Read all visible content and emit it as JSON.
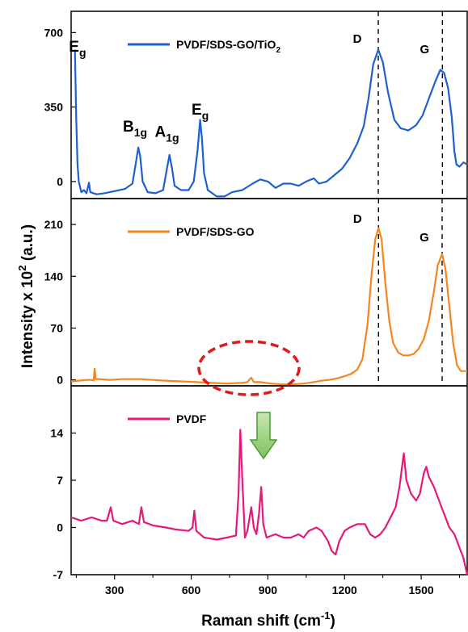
{
  "chart_data": {
    "type": "line",
    "x_axis": {
      "label": "Raman shift (cm",
      "label_sup": "-1",
      "label_end": ")",
      "range": [
        130,
        1680
      ],
      "ticks": [
        300,
        600,
        900,
        1200,
        1500
      ]
    },
    "y_axis": {
      "label": "Intensity x 10",
      "label_sup": "2",
      "label_end": " (a.u.)"
    },
    "panels": [
      {
        "id": "top",
        "legend": {
          "text": "PVDF/SDS-GO/TiO",
          "sub": "2"
        },
        "color": "#1f5fd0",
        "ylim": [
          -80,
          800
        ],
        "yticks": [
          0,
          350,
          700
        ],
        "annotations": [
          {
            "base": "E",
            "sub": "g",
            "x": 155,
            "y": 610
          },
          {
            "base": "B",
            "sub": "1g",
            "x": 380,
            "y": 235
          },
          {
            "base": "A",
            "sub": "1g",
            "x": 505,
            "y": 210
          },
          {
            "base": "E",
            "sub": "g",
            "x": 635,
            "y": 315
          }
        ],
        "D": {
          "label": "D",
          "x": 1332
        },
        "G": {
          "label": "G",
          "x": 1583
        },
        "points": [
          [
            145,
            620
          ],
          [
            150,
            300
          ],
          [
            155,
            80
          ],
          [
            160,
            0
          ],
          [
            170,
            -50
          ],
          [
            180,
            -40
          ],
          [
            190,
            -55
          ],
          [
            200,
            -5
          ],
          [
            205,
            -50
          ],
          [
            230,
            -60
          ],
          [
            260,
            -55
          ],
          [
            300,
            -45
          ],
          [
            340,
            -35
          ],
          [
            370,
            -10
          ],
          [
            385,
            100
          ],
          [
            393,
            160
          ],
          [
            400,
            120
          ],
          [
            410,
            0
          ],
          [
            430,
            -50
          ],
          [
            460,
            -55
          ],
          [
            490,
            -40
          ],
          [
            505,
            60
          ],
          [
            515,
            125
          ],
          [
            525,
            60
          ],
          [
            535,
            -20
          ],
          [
            560,
            -40
          ],
          [
            590,
            -40
          ],
          [
            610,
            0
          ],
          [
            625,
            150
          ],
          [
            635,
            290
          ],
          [
            642,
            200
          ],
          [
            650,
            40
          ],
          [
            665,
            -40
          ],
          [
            700,
            -70
          ],
          [
            730,
            -70
          ],
          [
            760,
            -50
          ],
          [
            800,
            -40
          ],
          [
            840,
            -10
          ],
          [
            870,
            10
          ],
          [
            900,
            0
          ],
          [
            930,
            -30
          ],
          [
            960,
            -10
          ],
          [
            990,
            -10
          ],
          [
            1020,
            -20
          ],
          [
            1050,
            0
          ],
          [
            1080,
            15
          ],
          [
            1100,
            -10
          ],
          [
            1130,
            0
          ],
          [
            1160,
            30
          ],
          [
            1190,
            60
          ],
          [
            1220,
            110
          ],
          [
            1250,
            180
          ],
          [
            1275,
            260
          ],
          [
            1295,
            400
          ],
          [
            1312,
            550
          ],
          [
            1332,
            620
          ],
          [
            1350,
            560
          ],
          [
            1370,
            420
          ],
          [
            1395,
            290
          ],
          [
            1420,
            250
          ],
          [
            1450,
            240
          ],
          [
            1480,
            265
          ],
          [
            1505,
            310
          ],
          [
            1530,
            390
          ],
          [
            1555,
            470
          ],
          [
            1575,
            525
          ],
          [
            1590,
            510
          ],
          [
            1605,
            440
          ],
          [
            1620,
            300
          ],
          [
            1630,
            140
          ],
          [
            1638,
            80
          ],
          [
            1650,
            70
          ],
          [
            1665,
            90
          ],
          [
            1680,
            80
          ]
        ]
      },
      {
        "id": "middle",
        "legend": {
          "text": "PVDF/SDS-GO",
          "sub": ""
        },
        "color": "#f5861e",
        "ylim": [
          -8,
          245
        ],
        "yticks": [
          0,
          70,
          140,
          210
        ],
        "annotations": [],
        "D": {
          "label": "D",
          "x": 1333
        },
        "G": {
          "label": "G",
          "x": 1582
        },
        "points": [
          [
            130,
            -2
          ],
          [
            160,
            -1
          ],
          [
            190,
            0
          ],
          [
            210,
            0
          ],
          [
            218,
            -1
          ],
          [
            222,
            15
          ],
          [
            226,
            1
          ],
          [
            240,
            1
          ],
          [
            280,
            0
          ],
          [
            330,
            1
          ],
          [
            400,
            1
          ],
          [
            450,
            0
          ],
          [
            500,
            -1
          ],
          [
            560,
            -2
          ],
          [
            620,
            -3
          ],
          [
            680,
            -4
          ],
          [
            740,
            -5
          ],
          [
            800,
            -4
          ],
          [
            820,
            -3
          ],
          [
            835,
            3
          ],
          [
            845,
            -3
          ],
          [
            870,
            -3
          ],
          [
            910,
            -5
          ],
          [
            960,
            -6
          ],
          [
            1000,
            -6
          ],
          [
            1040,
            -5
          ],
          [
            1080,
            -3
          ],
          [
            1110,
            -1
          ],
          [
            1140,
            0
          ],
          [
            1170,
            2
          ],
          [
            1200,
            5
          ],
          [
            1225,
            8
          ],
          [
            1250,
            14
          ],
          [
            1270,
            28
          ],
          [
            1290,
            75
          ],
          [
            1305,
            140
          ],
          [
            1320,
            190
          ],
          [
            1333,
            205
          ],
          [
            1345,
            190
          ],
          [
            1360,
            130
          ],
          [
            1375,
            80
          ],
          [
            1390,
            50
          ],
          [
            1410,
            37
          ],
          [
            1430,
            33
          ],
          [
            1450,
            33
          ],
          [
            1470,
            35
          ],
          [
            1490,
            42
          ],
          [
            1510,
            55
          ],
          [
            1530,
            80
          ],
          [
            1550,
            120
          ],
          [
            1565,
            155
          ],
          [
            1582,
            170
          ],
          [
            1595,
            150
          ],
          [
            1610,
            100
          ],
          [
            1625,
            50
          ],
          [
            1640,
            20
          ],
          [
            1655,
            12
          ],
          [
            1680,
            12
          ]
        ]
      },
      {
        "id": "bottom",
        "legend": {
          "text": "PVDF",
          "sub": ""
        },
        "color": "#e6197a",
        "ylim": [
          -7,
          21
        ],
        "yticks": [
          -7,
          0,
          7,
          14
        ],
        "annotations": [],
        "D": null,
        "G": null,
        "points": [
          [
            130,
            1.5
          ],
          [
            170,
            1
          ],
          [
            210,
            1.5
          ],
          [
            250,
            1
          ],
          [
            270,
            1
          ],
          [
            285,
            3
          ],
          [
            295,
            1
          ],
          [
            330,
            0.5
          ],
          [
            370,
            1
          ],
          [
            395,
            0.5
          ],
          [
            405,
            3
          ],
          [
            415,
            0.8
          ],
          [
            450,
            0.3
          ],
          [
            500,
            0
          ],
          [
            540,
            -0.3
          ],
          [
            590,
            -0.5
          ],
          [
            605,
            0
          ],
          [
            612,
            2.5
          ],
          [
            620,
            -0.5
          ],
          [
            650,
            -1.5
          ],
          [
            700,
            -1.8
          ],
          [
            740,
            -1.5
          ],
          [
            775,
            -1.2
          ],
          [
            785,
            5
          ],
          [
            792,
            14.5
          ],
          [
            800,
            7
          ],
          [
            810,
            -1.5
          ],
          [
            820,
            -0.5
          ],
          [
            835,
            3
          ],
          [
            845,
            0
          ],
          [
            855,
            -1
          ],
          [
            865,
            2
          ],
          [
            874,
            6
          ],
          [
            882,
            0.5
          ],
          [
            895,
            -1.5
          ],
          [
            930,
            -1
          ],
          [
            960,
            -1.5
          ],
          [
            990,
            -1.5
          ],
          [
            1020,
            -1
          ],
          [
            1040,
            -1.5
          ],
          [
            1060,
            -0.5
          ],
          [
            1090,
            0
          ],
          [
            1110,
            -0.5
          ],
          [
            1135,
            -2
          ],
          [
            1150,
            -3.5
          ],
          [
            1165,
            -4
          ],
          [
            1180,
            -2
          ],
          [
            1200,
            -0.5
          ],
          [
            1220,
            0
          ],
          [
            1250,
            0.5
          ],
          [
            1280,
            0.5
          ],
          [
            1300,
            -1
          ],
          [
            1320,
            -1.5
          ],
          [
            1340,
            -1
          ],
          [
            1360,
            0
          ],
          [
            1380,
            1.5
          ],
          [
            1400,
            3
          ],
          [
            1415,
            6
          ],
          [
            1425,
            9
          ],
          [
            1432,
            11
          ],
          [
            1442,
            7
          ],
          [
            1460,
            5
          ],
          [
            1480,
            4
          ],
          [
            1495,
            5
          ],
          [
            1510,
            8
          ],
          [
            1520,
            9
          ],
          [
            1530,
            7.5
          ],
          [
            1550,
            6
          ],
          [
            1570,
            4
          ],
          [
            1590,
            2
          ],
          [
            1610,
            0
          ],
          [
            1630,
            -1
          ],
          [
            1650,
            -3
          ],
          [
            1665,
            -4.5
          ],
          [
            1680,
            -7
          ]
        ]
      }
    ]
  }
}
